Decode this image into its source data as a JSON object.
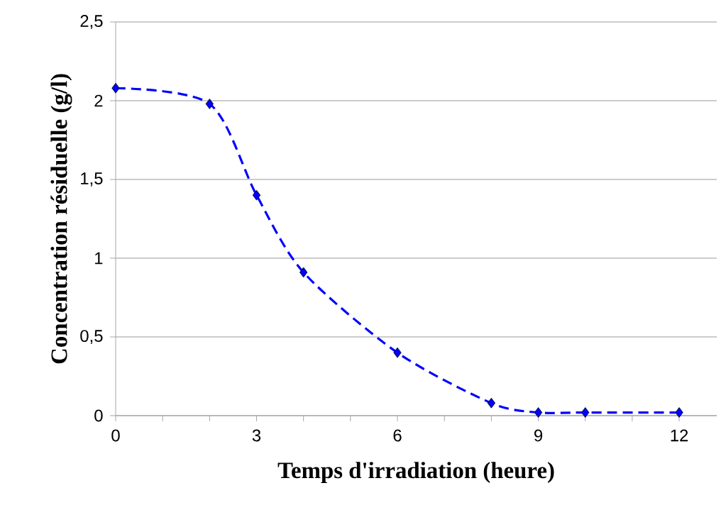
{
  "chart_data": {
    "type": "line",
    "xlabel": "Temps d'irradiation (heure)",
    "ylabel": "Concentration résiduelle (g/l)",
    "x": [
      0,
      2,
      3,
      4,
      6,
      8,
      9,
      10,
      12
    ],
    "series": [
      {
        "color": "#0000ff",
        "values": [
          2.08,
          1.98,
          1.4,
          0.91,
          0.4,
          0.08,
          0.02,
          0.02,
          0.02
        ]
      }
    ],
    "xlim": [
      0,
      12.8
    ],
    "xticks": [
      0,
      {
        "value": 1,
        "label": null
      },
      {
        "value": 2,
        "label": null
      },
      3,
      {
        "value": 4,
        "label": null
      },
      {
        "value": 5,
        "label": null
      },
      6,
      {
        "value": 7,
        "label": null
      },
      {
        "value": 8,
        "label": null
      },
      9,
      {
        "value": 10,
        "label": null
      },
      {
        "value": 11,
        "label": null
      },
      12
    ],
    "ylim": [
      0,
      2.5
    ],
    "yticks": [
      0,
      {
        "value": 0.5,
        "label": "0,5"
      },
      1,
      {
        "value": 1.5,
        "label": "1,5"
      },
      2,
      {
        "value": 2.5,
        "label": "2,5"
      }
    ],
    "grid": "y",
    "marker": "diamond",
    "line_style": "dashed"
  }
}
